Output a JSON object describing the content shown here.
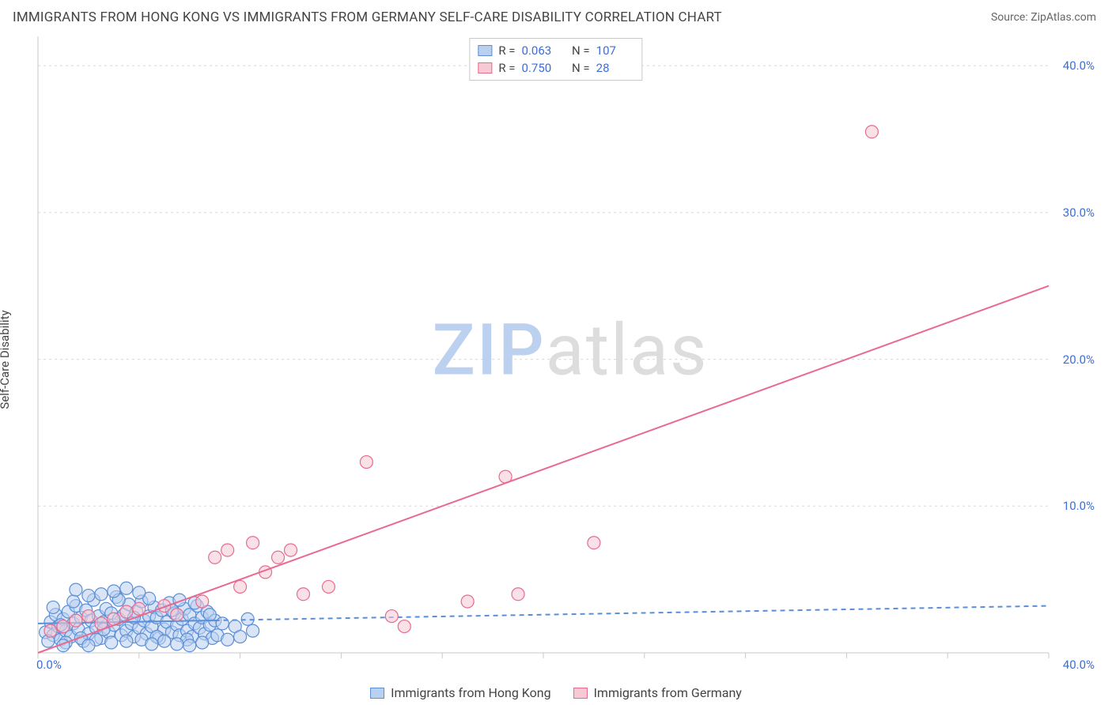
{
  "header": {
    "title": "IMMIGRANTS FROM HONG KONG VS IMMIGRANTS FROM GERMANY SELF-CARE DISABILITY CORRELATION CHART",
    "source_prefix": "Source: ",
    "source_name": "ZipAtlas.com"
  },
  "ylabel": "Self-Care Disability",
  "watermark": {
    "part1": "ZIP",
    "part2": "atlas"
  },
  "chart": {
    "type": "scatter",
    "background_color": "#ffffff",
    "grid_color": "#d8d8d8",
    "grid_dash": "3,4",
    "axis_color": "#c9c9c9",
    "tick_color": "#c9c9c9",
    "xlim": [
      0,
      40
    ],
    "ylim": [
      0,
      42
    ],
    "xtick_positions": [
      0,
      4,
      8,
      12,
      16,
      20,
      24,
      28,
      32,
      36,
      40
    ],
    "ytick_gridlines": [
      10,
      20,
      30,
      40
    ],
    "ytick_labels": [
      "10.0%",
      "20.0%",
      "30.0%",
      "40.0%"
    ],
    "x_origin_label": "0.0%",
    "x_max_label": "40.0%",
    "tick_label_color": "#3b6fd6",
    "tick_label_fontsize": 15,
    "marker_radius": 8,
    "marker_stroke_width": 1.2,
    "trend_line_width": 2,
    "series": [
      {
        "key": "hk",
        "label": "Immigrants from Hong Kong",
        "color_fill": "#b9d0f0",
        "color_stroke": "#5a8fd8",
        "fill_opacity": 0.55,
        "R": "0.063",
        "N": "107",
        "trend": {
          "y_at_x0": 2.0,
          "y_at_xmax": 3.2,
          "dashed": true,
          "solid_until_x": 7
        },
        "points": [
          [
            0.3,
            1.4
          ],
          [
            0.5,
            2.1
          ],
          [
            0.6,
            1.2
          ],
          [
            0.7,
            2.6
          ],
          [
            0.8,
            1.8
          ],
          [
            0.9,
            0.9
          ],
          [
            1.0,
            2.3
          ],
          [
            1.1,
            1.5
          ],
          [
            1.2,
            2.8
          ],
          [
            1.3,
            1.1
          ],
          [
            1.4,
            2.0
          ],
          [
            1.5,
            3.2
          ],
          [
            1.6,
            1.6
          ],
          [
            1.7,
            2.4
          ],
          [
            1.8,
            0.8
          ],
          [
            1.9,
            2.9
          ],
          [
            2.0,
            1.3
          ],
          [
            2.1,
            2.2
          ],
          [
            2.2,
            3.6
          ],
          [
            2.3,
            1.7
          ],
          [
            2.4,
            2.5
          ],
          [
            2.5,
            1.0
          ],
          [
            2.6,
            2.1
          ],
          [
            2.7,
            3.0
          ],
          [
            2.8,
            1.4
          ],
          [
            2.9,
            2.7
          ],
          [
            3.0,
            1.9
          ],
          [
            3.1,
            3.8
          ],
          [
            3.2,
            2.3
          ],
          [
            3.3,
            1.2
          ],
          [
            3.4,
            2.6
          ],
          [
            3.5,
            1.5
          ],
          [
            3.6,
            3.3
          ],
          [
            3.7,
            2.0
          ],
          [
            3.8,
            1.1
          ],
          [
            3.9,
            2.8
          ],
          [
            4.0,
            1.7
          ],
          [
            4.1,
            3.5
          ],
          [
            4.2,
            2.2
          ],
          [
            4.3,
            1.3
          ],
          [
            4.4,
            2.5
          ],
          [
            4.5,
            1.8
          ],
          [
            4.6,
            3.1
          ],
          [
            4.7,
            2.4
          ],
          [
            4.8,
            1.0
          ],
          [
            4.9,
            2.9
          ],
          [
            5.0,
            1.6
          ],
          [
            5.1,
            2.1
          ],
          [
            5.2,
            3.4
          ],
          [
            5.3,
            1.4
          ],
          [
            5.4,
            2.7
          ],
          [
            5.5,
            1.9
          ],
          [
            5.6,
            1.2
          ],
          [
            5.7,
            2.3
          ],
          [
            5.8,
            3.0
          ],
          [
            5.9,
            1.5
          ],
          [
            6.0,
            2.6
          ],
          [
            6.1,
            1.1
          ],
          [
            6.2,
            2.0
          ],
          [
            6.3,
            3.2
          ],
          [
            6.4,
            1.7
          ],
          [
            6.5,
            2.4
          ],
          [
            6.6,
            1.3
          ],
          [
            6.7,
            2.8
          ],
          [
            6.8,
            1.9
          ],
          [
            6.9,
            1.0
          ],
          [
            7.0,
            2.2
          ],
          [
            0.4,
            0.8
          ],
          [
            0.6,
            3.1
          ],
          [
            0.9,
            1.9
          ],
          [
            1.1,
            0.7
          ],
          [
            1.4,
            3.5
          ],
          [
            1.7,
            1.0
          ],
          [
            2.0,
            3.9
          ],
          [
            2.3,
            0.9
          ],
          [
            2.6,
            1.6
          ],
          [
            2.9,
            0.7
          ],
          [
            3.2,
            3.6
          ],
          [
            3.5,
            0.8
          ],
          [
            3.8,
            2.4
          ],
          [
            4.1,
            0.9
          ],
          [
            4.4,
            3.7
          ],
          [
            4.7,
            1.1
          ],
          [
            5.0,
            0.8
          ],
          [
            5.3,
            2.9
          ],
          [
            5.6,
            3.6
          ],
          [
            5.9,
            0.9
          ],
          [
            6.2,
            3.4
          ],
          [
            6.5,
            0.7
          ],
          [
            6.8,
            2.6
          ],
          [
            7.1,
            1.2
          ],
          [
            7.3,
            2.0
          ],
          [
            7.5,
            0.9
          ],
          [
            7.8,
            1.8
          ],
          [
            8.0,
            1.1
          ],
          [
            8.3,
            2.3
          ],
          [
            8.5,
            1.5
          ],
          [
            3.0,
            4.2
          ],
          [
            2.5,
            4.0
          ],
          [
            4.0,
            4.1
          ],
          [
            1.5,
            4.3
          ],
          [
            3.5,
            4.4
          ],
          [
            2.0,
            0.5
          ],
          [
            4.5,
            0.6
          ],
          [
            1.0,
            0.5
          ],
          [
            5.5,
            0.6
          ],
          [
            6.0,
            0.5
          ]
        ]
      },
      {
        "key": "de",
        "label": "Immigrants from Germany",
        "color_fill": "#f6c9d4",
        "color_stroke": "#e96a8f",
        "fill_opacity": 0.55,
        "R": "0.750",
        "N": "28",
        "trend": {
          "y_at_x0": 0.0,
          "y_at_xmax": 25.0,
          "dashed": false
        },
        "points": [
          [
            0.5,
            1.5
          ],
          [
            1.0,
            1.8
          ],
          [
            1.5,
            2.2
          ],
          [
            2.0,
            2.5
          ],
          [
            2.5,
            2.0
          ],
          [
            3.0,
            2.3
          ],
          [
            3.5,
            2.8
          ],
          [
            4.0,
            3.0
          ],
          [
            5.0,
            3.2
          ],
          [
            5.5,
            2.6
          ],
          [
            6.5,
            3.5
          ],
          [
            7.0,
            6.5
          ],
          [
            7.5,
            7.0
          ],
          [
            8.0,
            4.5
          ],
          [
            8.5,
            7.5
          ],
          [
            9.0,
            5.5
          ],
          [
            9.5,
            6.5
          ],
          [
            10.0,
            7.0
          ],
          [
            10.5,
            4.0
          ],
          [
            11.5,
            4.5
          ],
          [
            13.0,
            13.0
          ],
          [
            14.0,
            2.5
          ],
          [
            14.5,
            1.8
          ],
          [
            17.0,
            3.5
          ],
          [
            18.5,
            12.0
          ],
          [
            19.0,
            4.0
          ],
          [
            22.0,
            7.5
          ],
          [
            33.0,
            35.5
          ]
        ]
      }
    ]
  },
  "legend_top": {
    "border_color": "#c9c9c9",
    "value_color": "#3b6fd6"
  },
  "legend_bottom": {
    "items": [
      "hk",
      "de"
    ]
  }
}
